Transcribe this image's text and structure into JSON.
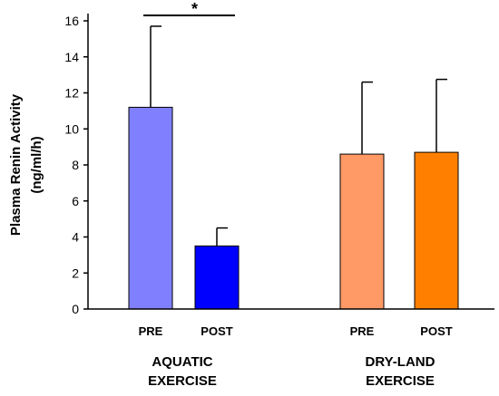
{
  "chart_data": {
    "type": "bar",
    "ylabel_line1": "Plasma Renin Activity",
    "ylabel_line2": "(ng/ml/h)",
    "ylim": [
      0,
      16
    ],
    "yticks": [
      "0",
      "2",
      "4",
      "6",
      "8",
      "10",
      "12",
      "14",
      "16"
    ],
    "grid": false,
    "bars": [
      {
        "label": "PRE",
        "group": "AQUATIC EXERCISE",
        "value": 11.2,
        "error": 4.5,
        "color": "#8080ff"
      },
      {
        "label": "POST",
        "group": "AQUATIC EXERCISE",
        "value": 3.5,
        "error": 1.0,
        "color": "#0000ff"
      },
      {
        "label": "PRE",
        "group": "DRY-LAND EXERCISE",
        "value": 8.6,
        "error": 4.0,
        "color": "#ff9966"
      },
      {
        "label": "POST",
        "group": "DRY-LAND EXERCISE",
        "value": 8.7,
        "error": 4.05,
        "color": "#ff8000"
      }
    ],
    "groups": [
      {
        "line1": "AQUATIC",
        "line2": "EXERCISE"
      },
      {
        "line1": "DRY-LAND",
        "line2": "EXERCISE"
      }
    ],
    "significance": {
      "label": "*",
      "between": [
        0,
        1
      ]
    }
  }
}
